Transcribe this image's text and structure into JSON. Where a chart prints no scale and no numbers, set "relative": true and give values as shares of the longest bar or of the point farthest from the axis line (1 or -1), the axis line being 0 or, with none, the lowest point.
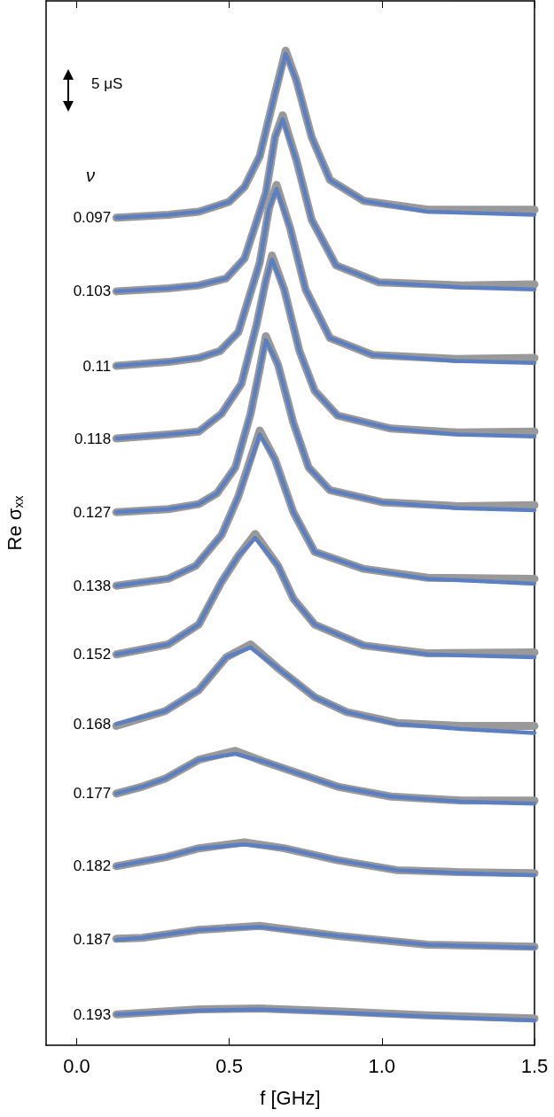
{
  "chart_data": {
    "type": "line",
    "relative": true,
    "xlabel": "f [GHz]",
    "ylabel": "Re σ$_{xx}$",
    "xlim": [
      -0.1,
      1.5
    ],
    "xticks": [
      {
        "value": 0,
        "label": "0.0"
      },
      {
        "value": 0.5,
        "label": "0.5"
      },
      {
        "value": 1,
        "label": "1.0"
      },
      {
        "value": 1.5,
        "label": "1.5"
      }
    ],
    "annotations": [
      "5 μS",
      "ν"
    ],
    "series": [
      {
        "color": "#999999",
        "x": [
          0.13,
          0.3,
          0.4,
          0.5,
          0.55,
          0.6,
          0.65,
          0.685,
          0.72,
          0.77,
          0.83,
          0.94,
          1.15,
          1.5
        ],
        "values": [
          0.832,
          0.835,
          0.838,
          0.848,
          0.863,
          0.894,
          0.957,
          1,
          0.97,
          0.913,
          0.87,
          0.849,
          0.84,
          0.84
        ]
      },
      {
        "name": "0.097",
        "color": "#5b7fc1",
        "x": [
          0.13,
          0.3,
          0.4,
          0.5,
          0.55,
          0.6,
          0.65,
          0.685,
          0.72,
          0.77,
          0.83,
          0.94,
          1.15,
          1.5
        ],
        "values": [
          0.832,
          0.835,
          0.838,
          0.848,
          0.863,
          0.894,
          0.957,
          0.997,
          0.97,
          0.913,
          0.87,
          0.849,
          0.838,
          0.835
        ]
      },
      {
        "color": "#999999",
        "x": [
          0.13,
          0.3,
          0.4,
          0.49,
          0.55,
          0.62,
          0.65,
          0.675,
          0.72,
          0.77,
          0.85,
          0.99,
          1.26,
          1.5
        ],
        "values": [
          0.758,
          0.761,
          0.764,
          0.771,
          0.791,
          0.857,
          0.913,
          0.935,
          0.89,
          0.83,
          0.784,
          0.767,
          0.764,
          0.765
        ]
      },
      {
        "name": "0.103",
        "color": "#5b7fc1",
        "x": [
          0.13,
          0.3,
          0.4,
          0.49,
          0.55,
          0.62,
          0.65,
          0.675,
          0.72,
          0.77,
          0.85,
          0.99,
          1.26,
          1.5
        ],
        "values": [
          0.758,
          0.761,
          0.764,
          0.771,
          0.791,
          0.857,
          0.913,
          0.931,
          0.89,
          0.83,
          0.784,
          0.767,
          0.762,
          0.76
        ]
      },
      {
        "color": "#999999",
        "x": [
          0.13,
          0.3,
          0.4,
          0.47,
          0.53,
          0.6,
          0.63,
          0.655,
          0.7,
          0.75,
          0.83,
          0.97,
          1.24,
          1.5
        ],
        "values": [
          0.683,
          0.687,
          0.691,
          0.698,
          0.717,
          0.787,
          0.841,
          0.865,
          0.821,
          0.76,
          0.711,
          0.694,
          0.69,
          0.691
        ]
      },
      {
        "name": "0.11",
        "color": "#5b7fc1",
        "x": [
          0.13,
          0.3,
          0.4,
          0.47,
          0.53,
          0.6,
          0.63,
          0.655,
          0.7,
          0.75,
          0.83,
          0.97,
          1.24,
          1.5
        ],
        "values": [
          0.683,
          0.687,
          0.691,
          0.698,
          0.717,
          0.787,
          0.841,
          0.861,
          0.821,
          0.76,
          0.711,
          0.694,
          0.688,
          0.686
        ]
      },
      {
        "color": "#999999",
        "x": [
          0.13,
          0.3,
          0.4,
          0.475,
          0.54,
          0.59,
          0.62,
          0.64,
          0.68,
          0.73,
          0.78,
          0.855,
          1.03,
          1.25,
          1.5
        ],
        "values": [
          0.61,
          0.614,
          0.617,
          0.635,
          0.665,
          0.725,
          0.769,
          0.794,
          0.76,
          0.698,
          0.658,
          0.633,
          0.62,
          0.616,
          0.617
        ]
      },
      {
        "name": "0.118",
        "color": "#5b7fc1",
        "x": [
          0.13,
          0.3,
          0.4,
          0.475,
          0.54,
          0.59,
          0.62,
          0.64,
          0.68,
          0.73,
          0.78,
          0.855,
          1.03,
          1.25,
          1.5
        ],
        "values": [
          0.61,
          0.614,
          0.617,
          0.635,
          0.665,
          0.725,
          0.769,
          0.79,
          0.76,
          0.698,
          0.658,
          0.633,
          0.62,
          0.614,
          0.612
        ]
      },
      {
        "color": "#999999",
        "x": [
          0.13,
          0.3,
          0.4,
          0.46,
          0.52,
          0.57,
          0.6,
          0.62,
          0.66,
          0.71,
          0.76,
          0.83,
          1.0,
          1.25,
          1.5
        ],
        "values": [
          0.536,
          0.539,
          0.544,
          0.555,
          0.581,
          0.635,
          0.68,
          0.713,
          0.684,
          0.626,
          0.581,
          0.558,
          0.546,
          0.542,
          0.543
        ]
      },
      {
        "name": "0.127",
        "color": "#5b7fc1",
        "x": [
          0.13,
          0.3,
          0.4,
          0.46,
          0.52,
          0.57,
          0.6,
          0.62,
          0.66,
          0.71,
          0.76,
          0.83,
          1.0,
          1.25,
          1.5
        ],
        "values": [
          0.536,
          0.539,
          0.544,
          0.555,
          0.581,
          0.635,
          0.68,
          0.709,
          0.684,
          0.626,
          0.581,
          0.558,
          0.546,
          0.54,
          0.538
        ]
      },
      {
        "color": "#999999",
        "x": [
          0.13,
          0.3,
          0.39,
          0.475,
          0.53,
          0.6,
          0.65,
          0.71,
          0.78,
          0.94,
          1.15,
          1.5
        ],
        "values": [
          0.462,
          0.469,
          0.482,
          0.513,
          0.552,
          0.618,
          0.589,
          0.536,
          0.496,
          0.479,
          0.47,
          0.469
        ]
      },
      {
        "name": "0.138",
        "color": "#5b7fc1",
        "x": [
          0.13,
          0.3,
          0.39,
          0.475,
          0.53,
          0.6,
          0.65,
          0.71,
          0.78,
          0.94,
          1.15,
          1.5
        ],
        "values": [
          0.462,
          0.469,
          0.482,
          0.513,
          0.552,
          0.614,
          0.589,
          0.536,
          0.496,
          0.479,
          0.469,
          0.464
        ]
      },
      {
        "color": "#999999",
        "x": [
          0.13,
          0.3,
          0.4,
          0.475,
          0.53,
          0.585,
          0.66,
          0.71,
          0.78,
          0.94,
          1.15,
          1.5
        ],
        "values": [
          0.393,
          0.403,
          0.423,
          0.466,
          0.492,
          0.514,
          0.482,
          0.449,
          0.423,
          0.402,
          0.394,
          0.395
        ]
      },
      {
        "name": "0.152",
        "color": "#5b7fc1",
        "x": [
          0.13,
          0.3,
          0.4,
          0.475,
          0.53,
          0.585,
          0.66,
          0.71,
          0.78,
          0.94,
          1.15,
          1.5
        ],
        "values": [
          0.393,
          0.403,
          0.423,
          0.466,
          0.492,
          0.51,
          0.482,
          0.449,
          0.423,
          0.402,
          0.393,
          0.39
        ]
      },
      {
        "color": "#999999",
        "x": [
          0.13,
          0.29,
          0.4,
          0.49,
          0.57,
          0.66,
          0.78,
          0.885,
          1.05,
          1.26,
          1.5
        ],
        "values": [
          0.321,
          0.336,
          0.357,
          0.39,
          0.403,
          0.379,
          0.35,
          0.335,
          0.324,
          0.321,
          0.321
        ]
      },
      {
        "name": "0.168",
        "color": "#5b7fc1",
        "x": [
          0.13,
          0.29,
          0.4,
          0.49,
          0.57,
          0.66,
          0.78,
          0.885,
          1.05,
          1.26,
          1.5
        ],
        "values": [
          0.323,
          0.336,
          0.357,
          0.39,
          0.4,
          0.379,
          0.35,
          0.335,
          0.323,
          0.318,
          0.314
        ]
      },
      {
        "color": "#999999",
        "x": [
          0.13,
          0.215,
          0.29,
          0.4,
          0.52,
          0.615,
          0.72,
          0.855,
          1.03,
          1.26,
          1.5
        ],
        "values": [
          0.253,
          0.26,
          0.268,
          0.287,
          0.296,
          0.285,
          0.274,
          0.26,
          0.25,
          0.246,
          0.246
        ]
      },
      {
        "name": "0.177",
        "color": "#5b7fc1",
        "x": [
          0.13,
          0.215,
          0.29,
          0.4,
          0.52,
          0.615,
          0.72,
          0.855,
          1.03,
          1.26,
          1.5
        ],
        "values": [
          0.253,
          0.26,
          0.268,
          0.287,
          0.293,
          0.285,
          0.274,
          0.26,
          0.25,
          0.245,
          0.243
        ]
      },
      {
        "color": "#999999",
        "x": [
          0.13,
          0.29,
          0.4,
          0.55,
          0.68,
          0.855,
          1.05,
          1.26,
          1.5
        ],
        "values": [
          0.18,
          0.189,
          0.198,
          0.204,
          0.198,
          0.186,
          0.176,
          0.174,
          0.173
        ]
      },
      {
        "name": "0.182",
        "color": "#5b7fc1",
        "x": [
          0.13,
          0.29,
          0.4,
          0.55,
          0.68,
          0.855,
          1.05,
          1.26,
          1.5
        ],
        "values": [
          0.18,
          0.189,
          0.198,
          0.202,
          0.198,
          0.186,
          0.176,
          0.173,
          0.171
        ]
      },
      {
        "color": "#999999",
        "x": [
          0.13,
          0.215,
          0.4,
          0.6,
          0.855,
          1.15,
          1.5
        ],
        "values": [
          0.107,
          0.108,
          0.116,
          0.12,
          0.11,
          0.101,
          0.099
        ]
      },
      {
        "name": "0.187",
        "color": "#5b7fc1",
        "x": [
          0.13,
          0.215,
          0.4,
          0.6,
          0.855,
          1.15,
          1.5
        ],
        "values": [
          0.106,
          0.108,
          0.116,
          0.119,
          0.11,
          0.101,
          0.098
        ]
      },
      {
        "color": "#999999",
        "x": [
          0.13,
          0.4,
          0.6,
          0.85,
          1.15,
          1.5
        ],
        "values": [
          0.031,
          0.036,
          0.037,
          0.034,
          0.03,
          0.027
        ]
      },
      {
        "name": "0.193",
        "color": "#5b7fc1",
        "x": [
          0.13,
          0.4,
          0.6,
          0.85,
          1.15,
          1.5
        ],
        "values": [
          0.031,
          0.035,
          0.036,
          0.033,
          0.029,
          0.025
        ]
      }
    ]
  }
}
